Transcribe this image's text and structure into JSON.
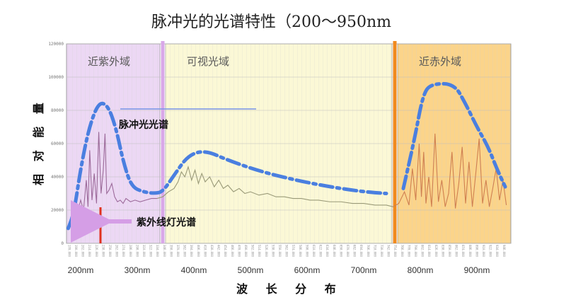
{
  "chart_data": {
    "type": "line",
    "title": "脉冲光的光谱特性（200～950nm",
    "xlabel": "波 长 分 布",
    "ylabel": "相 对 能 量",
    "xlim": [
      175,
      960
    ],
    "ylim": [
      0,
      120000
    ],
    "x_ticks": [
      {
        "value": 200,
        "label": "200nm"
      },
      {
        "value": 300,
        "label": "300nm"
      },
      {
        "value": 400,
        "label": "400nm"
      },
      {
        "value": 500,
        "label": "500nm"
      },
      {
        "value": 600,
        "label": "600nm"
      },
      {
        "value": 700,
        "label": "700nm"
      },
      {
        "value": 800,
        "label": "800nm"
      },
      {
        "value": 900,
        "label": "900nm"
      }
    ],
    "y_ticks": [
      {
        "value": 0,
        "label": "0"
      },
      {
        "value": 20000,
        "label": "20000"
      },
      {
        "value": 40000,
        "label": "40000"
      },
      {
        "value": 60000,
        "label": "60000"
      },
      {
        "value": 80000,
        "label": "80000"
      },
      {
        "value": 100000,
        "label": "100000"
      },
      {
        "value": 120000,
        "label": "120000"
      }
    ],
    "regions": [
      {
        "label": "近紫外域",
        "from": 175,
        "to": 340,
        "color": "#ecd8f4"
      },
      {
        "label": "可视光域",
        "from": 350,
        "to": 750,
        "color": "#fbf8d6"
      },
      {
        "label": "近赤外域",
        "from": 760,
        "to": 960,
        "color": "#fbd48a"
      }
    ],
    "region_dividers": [
      {
        "x": 345,
        "color": "#d9a8e8"
      },
      {
        "x": 755,
        "color": "#f08a1e"
      }
    ],
    "series": [
      {
        "name": "脉冲光光谱",
        "style": "dash-dot",
        "color": "#4a7fe0",
        "x": [
          178,
          188,
          200,
          215,
          232,
          248,
          262,
          276,
          290,
          310,
          330,
          345,
          365,
          390,
          420,
          460,
          520,
          580,
          640,
          700,
          740
        ],
        "y": [
          9000,
          18000,
          45000,
          70000,
          85000,
          83000,
          70000,
          48000,
          34000,
          31000,
          30000,
          31000,
          41000,
          53000,
          56000,
          50000,
          43000,
          38000,
          34000,
          31000,
          30000
        ]
      },
      {
        "name": "近赤外域",
        "style": "dash-dot",
        "color": "#4a7fe0",
        "x": [
          770,
          790,
          805,
          820,
          860,
          880,
          900,
          920,
          935,
          950
        ],
        "y": [
          33000,
          63000,
          90000,
          96000,
          96000,
          84000,
          70000,
          58000,
          45000,
          34000
        ]
      }
    ],
    "measured_spectrum": {
      "color_uv": "#9c6a9a",
      "color_vis": "#9a9a78",
      "color_nir": "#cf7f50",
      "x": [
        178,
        185,
        192,
        200,
        205,
        210,
        213,
        216,
        220,
        224,
        228,
        232,
        236,
        240,
        243,
        246,
        250,
        255,
        260,
        265,
        270,
        275,
        280,
        288,
        296,
        305,
        315,
        325,
        335,
        345,
        355,
        365,
        372,
        378,
        384,
        390,
        396,
        402,
        408,
        414,
        420,
        428,
        436,
        444,
        452,
        460,
        470,
        480,
        490,
        500,
        515,
        530,
        545,
        560,
        575,
        590,
        605,
        620,
        640,
        660,
        680,
        700,
        720,
        740,
        752,
        762,
        772,
        780,
        786,
        792,
        798,
        802,
        806,
        810,
        815,
        820,
        826,
        832,
        838,
        844,
        850,
        856,
        862,
        868,
        874,
        880,
        886,
        892,
        898,
        904,
        910,
        916,
        922,
        928,
        934,
        940,
        946,
        952
      ],
      "y": [
        9000,
        11000,
        15000,
        26000,
        20000,
        38000,
        22000,
        56000,
        26000,
        42000,
        24000,
        67000,
        30000,
        44000,
        66000,
        30000,
        32000,
        36000,
        28000,
        25000,
        26000,
        24000,
        27000,
        25000,
        26000,
        25000,
        26000,
        27000,
        27000,
        28000,
        31000,
        33000,
        37000,
        43000,
        40000,
        46000,
        38000,
        44000,
        36000,
        42000,
        37000,
        40000,
        34000,
        38000,
        33000,
        35000,
        31000,
        33000,
        30000,
        31000,
        29000,
        30000,
        28000,
        28000,
        27000,
        27000,
        26000,
        26000,
        25000,
        25000,
        24000,
        24000,
        23000,
        23000,
        22000,
        24000,
        31000,
        23000,
        45000,
        26000,
        60000,
        28000,
        55000,
        24000,
        40000,
        22000,
        66000,
        25000,
        38000,
        22000,
        30000,
        55000,
        21000,
        36000,
        58000,
        24000,
        49000,
        22000,
        42000,
        63000,
        24000,
        38000,
        22000,
        33000,
        45000,
        26000,
        38000,
        23000
      ]
    },
    "uv_line": {
      "x": 235,
      "color": "#e0301e"
    },
    "annotations": {
      "pulse": "脉冲光光谱",
      "uv_lamp": "紫外线灯光谱"
    },
    "grid": true,
    "legend": "none"
  }
}
